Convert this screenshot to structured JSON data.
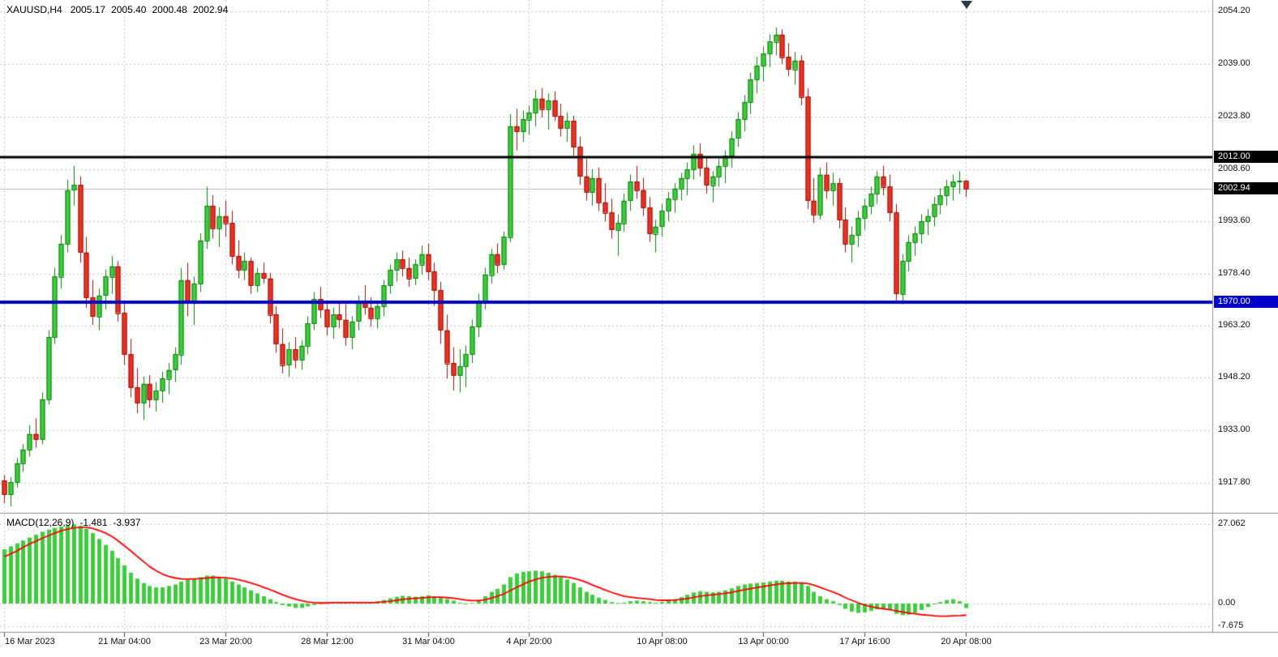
{
  "header": {
    "symbol_tf": "XAUUSD,H4",
    "open": "2005.17",
    "high": "2005.40",
    "low": "2000.48",
    "close": "2002.94"
  },
  "indicator": {
    "label_name": "MACD(12,26,9)",
    "value_main": "-1.481",
    "value_signal": "-3.937"
  },
  "chart_data": {
    "type": "candlestick",
    "symbol": "XAUUSD",
    "timeframe": "H4",
    "bars": 153,
    "main_ylim": [
      1909.4,
      2057.5
    ],
    "price_grid": [
      {
        "label": "2054.20",
        "price": 2054.2
      },
      {
        "label": "2039.00",
        "price": 2039.0
      },
      {
        "label": "2023.80",
        "price": 2023.8
      },
      {
        "label": "2008.60",
        "price": 2008.6
      },
      {
        "label": "1993.60",
        "price": 1993.6
      },
      {
        "label": "1978.40",
        "price": 1978.4
      },
      {
        "label": "1963.20",
        "price": 1963.2
      },
      {
        "label": "1948.20",
        "price": 1948.2
      },
      {
        "label": "1933.00",
        "price": 1933.0
      },
      {
        "label": "1917.80",
        "price": 1917.8
      }
    ],
    "price_badges": [
      {
        "label": "2012.00",
        "price": 2012.0,
        "bg": "#000000"
      },
      {
        "label": "2002.94",
        "price": 2002.94,
        "bg": "#000000"
      },
      {
        "label": "1970.00",
        "price": 1970.0,
        "bg": "#0000c8"
      }
    ],
    "hlines": [
      {
        "price": 2012.0,
        "color": "#000000",
        "width": 3
      },
      {
        "price": 1970.0,
        "color": "#0000c8",
        "width": 4
      },
      {
        "price": 2002.94,
        "color": "#b9b9b9",
        "width": 1
      }
    ],
    "time_labels": [
      {
        "label": "16 Mar 2023",
        "bar": 0
      },
      {
        "label": "21 Mar 04:00",
        "bar": 19
      },
      {
        "label": "23 Mar 20:00",
        "bar": 35
      },
      {
        "label": "28 Mar 12:00",
        "bar": 51
      },
      {
        "label": "31 Mar 04:00",
        "bar": 67
      },
      {
        "label": "4 Apr 20:00",
        "bar": 83
      },
      {
        "label": "10 Apr 08:00",
        "bar": 104
      },
      {
        "label": "13 Apr 00:00",
        "bar": 120
      },
      {
        "label": "17 Apr 16:00",
        "bar": 136
      },
      {
        "label": "20 Apr 08:00",
        "bar": 152
      }
    ],
    "candles_ohlc": [
      [
        1918.5,
        1920.0,
        1912.0,
        1914.5
      ],
      [
        1914.5,
        1919.5,
        1911.0,
        1918.0
      ],
      [
        1918.0,
        1925.0,
        1916.5,
        1923.5
      ],
      [
        1923.5,
        1929.0,
        1921.0,
        1927.5
      ],
      [
        1927.5,
        1934.5,
        1925.5,
        1932.0
      ],
      [
        1932.0,
        1936.5,
        1928.0,
        1930.5
      ],
      [
        1930.5,
        1944.0,
        1929.0,
        1942.0
      ],
      [
        1942.0,
        1962.0,
        1940.5,
        1960.0
      ],
      [
        1960.0,
        1980.0,
        1958.0,
        1977.5
      ],
      [
        1977.5,
        1989.5,
        1974.0,
        1987.0
      ],
      [
        1987.0,
        2005.5,
        1984.5,
        2002.5
      ],
      [
        2002.5,
        2009.5,
        1998.0,
        2004.0
      ],
      [
        2004.0,
        2006.5,
        1981.5,
        1984.5
      ],
      [
        1984.5,
        1989.0,
        1968.5,
        1971.5
      ],
      [
        1971.5,
        1976.5,
        1963.5,
        1966.0
      ],
      [
        1966.0,
        1974.0,
        1962.0,
        1972.0
      ],
      [
        1972.0,
        1979.5,
        1968.0,
        1977.5
      ],
      [
        1977.5,
        1983.5,
        1972.5,
        1980.5
      ],
      [
        1980.5,
        1982.0,
        1964.5,
        1967.0
      ],
      [
        1967.0,
        1970.0,
        1952.0,
        1955.0
      ],
      [
        1955.0,
        1959.5,
        1942.5,
        1945.5
      ],
      [
        1945.5,
        1951.0,
        1938.0,
        1941.0
      ],
      [
        1941.0,
        1948.5,
        1936.0,
        1946.5
      ],
      [
        1946.5,
        1949.0,
        1939.5,
        1942.0
      ],
      [
        1942.0,
        1947.0,
        1938.5,
        1944.5
      ],
      [
        1944.5,
        1950.0,
        1941.0,
        1948.0
      ],
      [
        1948.0,
        1952.5,
        1943.5,
        1950.5
      ],
      [
        1950.5,
        1957.0,
        1947.0,
        1955.0
      ],
      [
        1955.0,
        1980.0,
        1952.0,
        1976.5
      ],
      [
        1976.5,
        1981.5,
        1966.0,
        1970.0
      ],
      [
        1970.0,
        1977.5,
        1963.5,
        1975.5
      ],
      [
        1975.5,
        1990.0,
        1973.0,
        1988.0
      ],
      [
        1988.0,
        2003.5,
        1985.5,
        1998.0
      ],
      [
        1998.0,
        2001.0,
        1988.5,
        1991.5
      ],
      [
        1991.5,
        1997.5,
        1986.0,
        1995.0
      ],
      [
        1995.0,
        1999.5,
        1989.0,
        1993.0
      ],
      [
        1993.0,
        1996.5,
        1981.0,
        1983.5
      ],
      [
        1983.5,
        1988.0,
        1977.0,
        1979.5
      ],
      [
        1979.5,
        1984.5,
        1976.5,
        1982.0
      ],
      [
        1982.0,
        1983.0,
        1972.5,
        1975.0
      ],
      [
        1975.0,
        1980.0,
        1973.0,
        1978.5
      ],
      [
        1978.5,
        1981.5,
        1975.5,
        1977.0
      ],
      [
        1977.0,
        1978.5,
        1964.0,
        1966.5
      ],
      [
        1966.5,
        1969.0,
        1955.5,
        1958.0
      ],
      [
        1958.0,
        1962.5,
        1949.5,
        1952.0
      ],
      [
        1952.0,
        1958.5,
        1948.5,
        1956.5
      ],
      [
        1956.5,
        1960.0,
        1951.0,
        1953.5
      ],
      [
        1953.5,
        1959.0,
        1950.5,
        1957.5
      ],
      [
        1957.5,
        1966.0,
        1955.0,
        1964.0
      ],
      [
        1964.0,
        1973.0,
        1962.0,
        1971.0
      ],
      [
        1971.0,
        1974.5,
        1965.5,
        1968.0
      ],
      [
        1968.0,
        1970.5,
        1960.5,
        1963.0
      ],
      [
        1963.0,
        1968.5,
        1959.5,
        1966.5
      ],
      [
        1966.5,
        1970.0,
        1962.5,
        1965.0
      ],
      [
        1965.0,
        1969.5,
        1957.5,
        1960.0
      ],
      [
        1960.0,
        1966.0,
        1956.5,
        1964.5
      ],
      [
        1964.5,
        1972.0,
        1962.0,
        1970.0
      ],
      [
        1970.0,
        1975.0,
        1966.5,
        1968.5
      ],
      [
        1968.5,
        1971.5,
        1963.0,
        1965.5
      ],
      [
        1965.5,
        1970.5,
        1962.5,
        1969.0
      ],
      [
        1969.0,
        1976.5,
        1966.0,
        1975.0
      ],
      [
        1975.0,
        1981.0,
        1972.5,
        1979.5
      ],
      [
        1979.5,
        1984.5,
        1976.0,
        1982.5
      ],
      [
        1982.5,
        1985.0,
        1977.5,
        1980.0
      ],
      [
        1980.0,
        1983.0,
        1974.5,
        1977.0
      ],
      [
        1977.0,
        1982.5,
        1975.0,
        1981.0
      ],
      [
        1981.0,
        1986.5,
        1978.0,
        1984.0
      ],
      [
        1984.0,
        1987.0,
        1976.5,
        1979.0
      ],
      [
        1979.0,
        1981.5,
        1969.0,
        1973.5
      ],
      [
        1973.5,
        1976.0,
        1958.0,
        1962.0
      ],
      [
        1962.0,
        1966.5,
        1948.0,
        1952.5
      ],
      [
        1952.5,
        1957.0,
        1944.5,
        1949.0
      ],
      [
        1949.0,
        1956.5,
        1944.0,
        1951.5
      ],
      [
        1951.5,
        1957.5,
        1945.5,
        1955.0
      ],
      [
        1955.0,
        1965.0,
        1952.5,
        1963.0
      ],
      [
        1963.0,
        1972.5,
        1960.0,
        1970.5
      ],
      [
        1970.5,
        1980.0,
        1968.0,
        1978.0
      ],
      [
        1978.0,
        1985.5,
        1975.5,
        1984.0
      ],
      [
        1984.0,
        1987.0,
        1978.5,
        1981.0
      ],
      [
        1981.0,
        1990.5,
        1979.5,
        1989.0
      ],
      [
        1989.0,
        2024.5,
        1987.5,
        2021.0
      ],
      [
        2021.0,
        2026.0,
        2014.0,
        2019.5
      ],
      [
        2019.5,
        2025.5,
        2016.5,
        2023.0
      ],
      [
        2023.0,
        2027.0,
        2018.5,
        2025.0
      ],
      [
        2025.0,
        2031.5,
        2021.0,
        2029.0
      ],
      [
        2029.0,
        2032.0,
        2023.5,
        2026.0
      ],
      [
        2026.0,
        2030.5,
        2020.0,
        2028.5
      ],
      [
        2028.5,
        2031.0,
        2022.5,
        2024.0
      ],
      [
        2024.0,
        2027.5,
        2018.0,
        2020.5
      ],
      [
        2020.5,
        2025.0,
        2016.5,
        2022.5
      ],
      [
        2022.5,
        2024.0,
        2012.5,
        2015.0
      ],
      [
        2015.0,
        2018.0,
        2004.0,
        2006.5
      ],
      [
        2006.5,
        2011.5,
        1999.5,
        2002.0
      ],
      [
        2002.0,
        2008.5,
        1998.0,
        2006.0
      ],
      [
        2006.0,
        2009.0,
        1996.5,
        1999.0
      ],
      [
        1999.0,
        2004.5,
        1993.5,
        1996.0
      ],
      [
        1996.0,
        2000.0,
        1988.5,
        1991.0
      ],
      [
        1991.0,
        1995.5,
        1983.5,
        1993.0
      ],
      [
        1993.0,
        2001.5,
        1990.5,
        1999.5
      ],
      [
        1999.5,
        2007.0,
        1996.5,
        2005.0
      ],
      [
        2005.0,
        2009.5,
        2000.0,
        2002.5
      ],
      [
        2002.5,
        2006.0,
        1995.0,
        1997.5
      ],
      [
        1997.5,
        2000.5,
        1987.5,
        1990.0
      ],
      [
        1990.0,
        1994.0,
        1984.5,
        1992.0
      ],
      [
        1992.0,
        1998.5,
        1989.0,
        1996.5
      ],
      [
        1996.5,
        2002.0,
        1993.5,
        2000.0
      ],
      [
        2000.0,
        2004.5,
        1996.0,
        2003.0
      ],
      [
        2003.0,
        2007.5,
        1999.5,
        2006.0
      ],
      [
        2006.0,
        2010.5,
        2001.0,
        2008.5
      ],
      [
        2008.5,
        2015.5,
        2005.5,
        2013.0
      ],
      [
        2013.0,
        2016.0,
        2006.5,
        2009.0
      ],
      [
        2009.0,
        2012.0,
        2001.5,
        2004.0
      ],
      [
        2004.0,
        2008.0,
        1999.0,
        2006.5
      ],
      [
        2006.5,
        2011.5,
        2003.5,
        2009.5
      ],
      [
        2009.5,
        2014.0,
        2004.5,
        2012.5
      ],
      [
        2012.5,
        2019.5,
        2009.0,
        2017.5
      ],
      [
        2017.5,
        2025.0,
        2015.0,
        2023.0
      ],
      [
        2023.0,
        2030.0,
        2019.5,
        2028.0
      ],
      [
        2028.0,
        2036.5,
        2024.5,
        2034.5
      ],
      [
        2034.5,
        2041.0,
        2030.5,
        2038.5
      ],
      [
        2038.5,
        2044.0,
        2034.0,
        2042.0
      ],
      [
        2042.0,
        2047.5,
        2038.0,
        2045.5
      ],
      [
        2045.5,
        2049.5,
        2041.5,
        2047.5
      ],
      [
        2047.5,
        2049.0,
        2039.0,
        2041.0
      ],
      [
        2041.0,
        2045.0,
        2035.5,
        2037.5
      ],
      [
        2037.5,
        2042.5,
        2033.0,
        2040.0
      ],
      [
        2040.0,
        2041.5,
        2027.0,
        2029.5
      ],
      [
        2029.5,
        2032.0,
        1997.0,
        1999.5
      ],
      [
        1999.5,
        2006.0,
        1993.0,
        1995.5
      ],
      [
        1995.5,
        2009.0,
        1994.0,
        2007.0
      ],
      [
        2007.0,
        2010.5,
        2000.0,
        2002.5
      ],
      [
        2002.5,
        2007.5,
        1998.0,
        2004.5
      ],
      [
        2004.5,
        2006.0,
        1991.5,
        1994.0
      ],
      [
        1994.0,
        1997.5,
        1984.5,
        1987.0
      ],
      [
        1987.0,
        1992.0,
        1981.5,
        1989.5
      ],
      [
        1989.5,
        1996.5,
        1986.0,
        1994.5
      ],
      [
        1994.5,
        2000.0,
        1991.0,
        1998.0
      ],
      [
        1998.0,
        2003.5,
        1995.5,
        2001.5
      ],
      [
        2001.5,
        2008.0,
        1998.5,
        2006.5
      ],
      [
        2006.5,
        2009.5,
        2001.0,
        2003.5
      ],
      [
        2003.5,
        2007.0,
        1993.5,
        1996.0
      ],
      [
        1996.0,
        1998.5,
        1970.5,
        1972.5
      ],
      [
        1972.5,
        1984.0,
        1969.5,
        1982.0
      ],
      [
        1982.0,
        1989.5,
        1979.0,
        1987.5
      ],
      [
        1987.5,
        1992.0,
        1983.5,
        1990.0
      ],
      [
        1990.0,
        1995.5,
        1987.0,
        1993.5
      ],
      [
        1993.5,
        1997.0,
        1989.5,
        1995.0
      ],
      [
        1995.0,
        2000.5,
        1992.0,
        1998.5
      ],
      [
        1998.5,
        2003.0,
        1995.5,
        2001.0
      ],
      [
        2001.0,
        2005.5,
        1998.0,
        2003.5
      ],
      [
        2003.5,
        2007.0,
        1999.5,
        2005.0
      ],
      [
        2005.0,
        2008.0,
        2001.5,
        2005.2
      ],
      [
        2005.17,
        2005.4,
        2000.48,
        2002.94
      ]
    ],
    "macd": {
      "type": "histogram+line",
      "params": [
        12,
        26,
        9
      ],
      "ylim": [
        -9.67,
        30.66
      ],
      "grid_values": [
        {
          "label": "27.062",
          "value": 27.062
        },
        {
          "label": "0.00",
          "value": 0
        },
        {
          "label": "-7.675",
          "value": -7.675
        }
      ],
      "histogram": [
        18.5,
        19.5,
        20.5,
        21.5,
        22.5,
        23.5,
        24.5,
        25.2,
        25.8,
        26.3,
        26.8,
        27.0,
        26.5,
        25.5,
        24.0,
        22.0,
        20.0,
        18.0,
        15.5,
        13.0,
        10.5,
        8.5,
        7.0,
        6.0,
        5.5,
        5.5,
        6.0,
        6.5,
        7.5,
        8.0,
        8.5,
        9.0,
        9.5,
        9.5,
        9.0,
        8.5,
        7.5,
        6.5,
        5.5,
        4.5,
        3.5,
        2.5,
        1.5,
        0.5,
        -0.5,
        -1.0,
        -1.5,
        -1.5,
        -1.0,
        -0.5,
        0.0,
        0.3,
        0.5,
        0.5,
        0.3,
        0.2,
        0.2,
        0.3,
        0.5,
        0.8,
        1.2,
        1.8,
        2.3,
        2.6,
        2.5,
        2.3,
        2.5,
        2.8,
        2.5,
        2.0,
        1.5,
        1.0,
        0.3,
        -0.3,
        0.2,
        1.2,
        2.5,
        4.0,
        5.0,
        6.5,
        9.0,
        10.3,
        10.8,
        11.0,
        11.2,
        11.0,
        10.5,
        9.8,
        9.0,
        8.2,
        7.0,
        5.5,
        4.0,
        3.0,
        2.0,
        1.2,
        0.5,
        0.2,
        0.3,
        0.8,
        1.0,
        0.8,
        0.5,
        0.3,
        0.5,
        1.0,
        1.5,
        2.2,
        3.0,
        3.8,
        4.2,
        4.0,
        3.8,
        4.0,
        4.5,
        5.2,
        6.0,
        6.5,
        6.8,
        7.0,
        7.2,
        7.5,
        7.8,
        7.8,
        7.5,
        7.5,
        7.0,
        6.0,
        4.0,
        2.5,
        1.5,
        0.8,
        -0.5,
        -1.8,
        -2.8,
        -3.2,
        -3.0,
        -2.5,
        -2.0,
        -1.8,
        -2.2,
        -3.5,
        -4.0,
        -3.8,
        -3.2,
        -2.2,
        -1.2,
        -0.3,
        0.5,
        1.2,
        1.5,
        0.8,
        -1.481
      ],
      "signal": [
        16.0,
        17.0,
        18.0,
        19.2,
        20.3,
        21.3,
        22.3,
        23.2,
        24.0,
        24.8,
        25.4,
        25.8,
        26.0,
        26.0,
        25.6,
        24.9,
        24.0,
        22.8,
        21.4,
        19.7,
        17.9,
        16.0,
        14.2,
        12.6,
        11.2,
        10.0,
        9.2,
        8.7,
        8.4,
        8.3,
        8.4,
        8.5,
        8.7,
        8.9,
        8.9,
        8.8,
        8.5,
        8.1,
        7.6,
        7.0,
        6.3,
        5.5,
        4.7,
        3.9,
        3.0,
        2.2,
        1.5,
        0.9,
        0.5,
        0.3,
        0.2,
        0.2,
        0.3,
        0.3,
        0.3,
        0.3,
        0.3,
        0.3,
        0.3,
        0.4,
        0.6,
        0.8,
        1.1,
        1.4,
        1.6,
        1.8,
        1.9,
        2.1,
        2.2,
        2.2,
        2.0,
        1.8,
        1.5,
        1.2,
        1.0,
        1.0,
        1.3,
        1.9,
        2.5,
        3.3,
        4.4,
        5.6,
        6.6,
        7.5,
        8.2,
        8.8,
        9.1,
        9.2,
        9.2,
        9.0,
        8.6,
        8.0,
        7.2,
        6.3,
        5.5,
        4.6,
        3.8,
        3.1,
        2.5,
        2.2,
        1.9,
        1.7,
        1.5,
        1.2,
        1.1,
        1.1,
        1.2,
        1.4,
        1.7,
        2.1,
        2.5,
        2.8,
        3.0,
        3.2,
        3.5,
        3.8,
        4.3,
        4.7,
        5.1,
        5.5,
        5.8,
        6.2,
        6.5,
        6.8,
        6.9,
        7.0,
        7.0,
        6.8,
        6.3,
        5.5,
        4.7,
        3.9,
        3.0,
        2.0,
        1.1,
        0.2,
        -0.5,
        -1.1,
        -1.5,
        -1.8,
        -2.1,
        -2.5,
        -2.9,
        -3.2,
        -3.5,
        -3.8,
        -4.0,
        -4.2,
        -4.3,
        -4.3,
        -4.2,
        -4.1,
        -3.937
      ]
    },
    "colors": {
      "bull_fill": "#3fcc3f",
      "bull_border": "#0d7f0d",
      "bear_fill": "#ee3124",
      "bear_border": "#8f130b",
      "hist": "#3fcc3f",
      "signal": "#ff0000",
      "grid": "#c4c4c4",
      "separator": "#8f8f8f",
      "tick": "#444444"
    }
  }
}
